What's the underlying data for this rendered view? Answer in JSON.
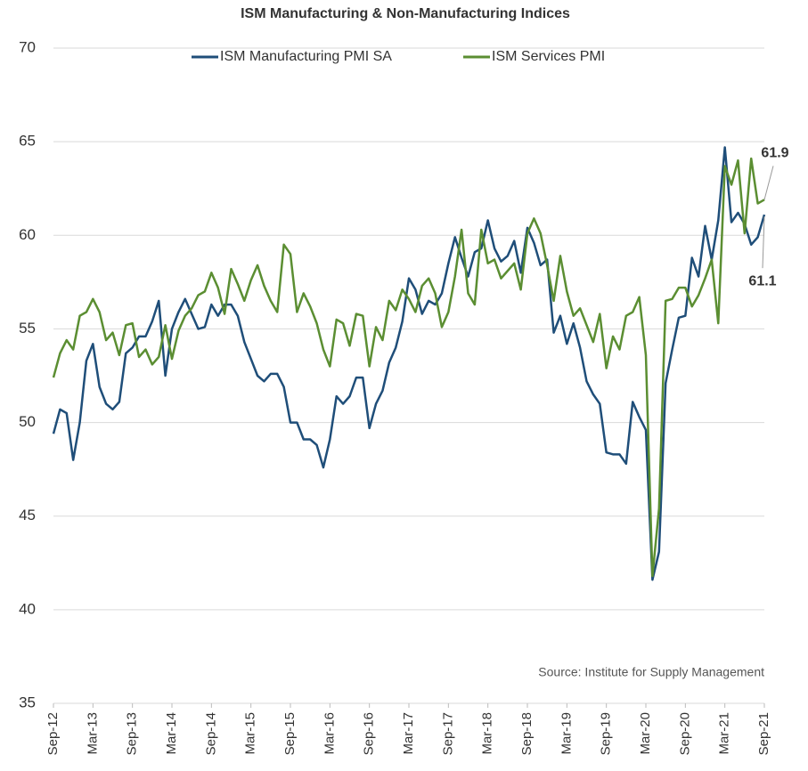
{
  "chart_data": {
    "type": "line",
    "title": "ISM Manufacturing & Non-Manufacturing Indices",
    "source": "Source: Institute for Supply Management",
    "categories": [
      "Sep-12",
      null,
      null,
      null,
      null,
      null,
      "Mar-13",
      null,
      null,
      null,
      null,
      null,
      "Sep-13",
      null,
      null,
      null,
      null,
      null,
      "Mar-14",
      null,
      null,
      null,
      null,
      null,
      "Sep-14",
      null,
      null,
      null,
      null,
      null,
      "Mar-15",
      null,
      null,
      null,
      null,
      null,
      "Sep-15",
      null,
      null,
      null,
      null,
      null,
      "Mar-16",
      null,
      null,
      null,
      null,
      null,
      "Sep-16",
      null,
      null,
      null,
      null,
      null,
      "Mar-17",
      null,
      null,
      null,
      null,
      null,
      "Sep-17",
      null,
      null,
      null,
      null,
      null,
      "Mar-18",
      null,
      null,
      null,
      null,
      null,
      "Sep-18",
      null,
      null,
      null,
      null,
      null,
      "Mar-19",
      null,
      null,
      null,
      null,
      null,
      "Sep-19",
      null,
      null,
      null,
      null,
      null,
      "Mar-20",
      null,
      null,
      null,
      null,
      null,
      "Sep-20",
      null,
      null,
      null,
      null,
      null,
      "Mar-21",
      null,
      null,
      null,
      null,
      null,
      "Sep-21"
    ],
    "series": [
      {
        "name": "ISM Manufacturing PMI SA",
        "color": "#1f4e79",
        "values": [
          49.4,
          50.7,
          50.5,
          48.0,
          50.0,
          53.3,
          54.2,
          51.9,
          51.0,
          50.7,
          51.1,
          53.7,
          54.0,
          54.6,
          54.6,
          55.4,
          56.5,
          52.5,
          55.0,
          55.9,
          56.6,
          55.8,
          55.0,
          55.1,
          56.3,
          55.7,
          56.3,
          56.3,
          55.7,
          54.3,
          53.4,
          52.5,
          52.2,
          52.6,
          52.6,
          51.9,
          50.0,
          50.0,
          49.1,
          49.1,
          48.8,
          47.6,
          49.1,
          51.4,
          51.0,
          51.4,
          52.4,
          52.4,
          49.7,
          51.0,
          51.7,
          53.2,
          54.0,
          55.4,
          57.7,
          57.1,
          55.8,
          56.5,
          56.3,
          56.9,
          58.5,
          59.9,
          58.8,
          57.8,
          59.1,
          59.3,
          60.8,
          59.3,
          58.6,
          58.9,
          59.7,
          58.0,
          60.4,
          59.6,
          58.4,
          58.7,
          54.8,
          55.7,
          54.2,
          55.3,
          54.0,
          52.2,
          51.5,
          51.0,
          48.4,
          48.3,
          48.3,
          47.8,
          51.1,
          50.3,
          49.6,
          41.6,
          43.1,
          52.1,
          53.9,
          55.6,
          55.7,
          58.8,
          57.8,
          60.5,
          58.7,
          60.8,
          64.7,
          60.7,
          61.2,
          60.6,
          59.5,
          59.9,
          61.1
        ]
      },
      {
        "name": "ISM Services PMI",
        "color": "#5b8e32",
        "values": [
          52.4,
          53.7,
          54.4,
          53.9,
          55.7,
          55.9,
          56.6,
          55.9,
          54.4,
          54.8,
          53.6,
          55.2,
          55.3,
          53.5,
          53.9,
          53.1,
          53.5,
          55.2,
          53.4,
          54.9,
          55.7,
          56.1,
          56.8,
          57.0,
          58.0,
          57.2,
          55.8,
          58.2,
          57.4,
          56.5,
          57.6,
          58.4,
          57.3,
          56.5,
          55.9,
          59.5,
          59.0,
          55.9,
          56.9,
          56.2,
          55.3,
          53.9,
          53.0,
          55.5,
          55.3,
          54.1,
          55.8,
          55.7,
          53.0,
          55.1,
          54.4,
          56.5,
          56.0,
          57.1,
          56.6,
          55.9,
          57.3,
          57.7,
          56.9,
          55.1,
          55.9,
          57.8,
          60.3,
          56.9,
          56.3,
          60.3,
          58.5,
          58.7,
          57.7,
          58.1,
          58.5,
          57.1,
          60.1,
          60.9,
          60.1,
          58.4,
          56.5,
          58.9,
          57.0,
          55.7,
          56.1,
          55.2,
          54.3,
          55.8,
          52.9,
          54.6,
          53.9,
          55.7,
          55.9,
          56.7,
          53.6,
          41.8,
          45.4,
          56.5,
          56.6,
          57.2,
          57.2,
          56.2,
          56.8,
          57.7,
          58.7,
          55.3,
          63.7,
          62.7,
          64.0,
          60.1,
          64.1,
          61.7,
          61.9
        ]
      }
    ],
    "ylim": [
      35,
      70
    ],
    "yticks": [
      35,
      40,
      45,
      50,
      55,
      60,
      65,
      70
    ],
    "grid": true,
    "legend": "top"
  }
}
